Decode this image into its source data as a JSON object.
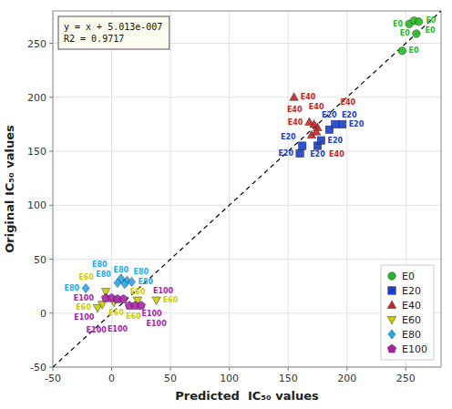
{
  "chart_data": {
    "type": "scatter",
    "xlabel": "Predicted  IC₅₀ values",
    "ylabel": "Original IC₅₀ values",
    "xlim": [
      -50,
      280
    ],
    "ylim": [
      -50,
      280
    ],
    "xticks": [
      -50,
      0,
      50,
      100,
      150,
      200,
      250
    ],
    "yticks": [
      -50,
      0,
      50,
      100,
      150,
      200,
      250
    ],
    "grid": true,
    "legend": "lower right",
    "annotations": [
      "y = x + 5.013e-007",
      "R2 = 0.9717"
    ],
    "series": [
      {
        "name": "E0",
        "color": "#22bb22",
        "marker": "circle",
        "x": [
          247,
          253,
          257,
          261,
          259
        ],
        "values": [
          243,
          268,
          271,
          270,
          259
        ]
      },
      {
        "name": "E20",
        "color": "#1a3fcc",
        "marker": "square",
        "x": [
          160,
          162,
          175,
          178,
          185,
          190,
          196
        ],
        "values": [
          148,
          155,
          155,
          160,
          170,
          175,
          175
        ]
      },
      {
        "name": "E40",
        "color": "#cc2222",
        "marker": "triangle-up",
        "x": [
          155,
          168,
          172,
          175,
          170,
          174
        ],
        "values": [
          200,
          177,
          175,
          172,
          165,
          168
        ]
      },
      {
        "name": "E60",
        "color": "#cccc00",
        "marker": "triangle-down",
        "x": [
          -12,
          -8,
          22,
          38,
          -5,
          2
        ],
        "values": [
          5,
          8,
          12,
          12,
          20,
          10
        ]
      },
      {
        "name": "E80",
        "color": "#22aaee",
        "marker": "diamond",
        "x": [
          -22,
          8,
          13,
          17,
          5,
          11
        ],
        "values": [
          23,
          32,
          30,
          29,
          28,
          27
        ]
      },
      {
        "name": "E100",
        "color": "#aa22aa",
        "marker": "pentagon",
        "x": [
          -5,
          0,
          5,
          10,
          15,
          20,
          25
        ],
        "values": [
          14,
          14,
          13,
          13,
          7,
          7,
          7
        ]
      }
    ]
  }
}
